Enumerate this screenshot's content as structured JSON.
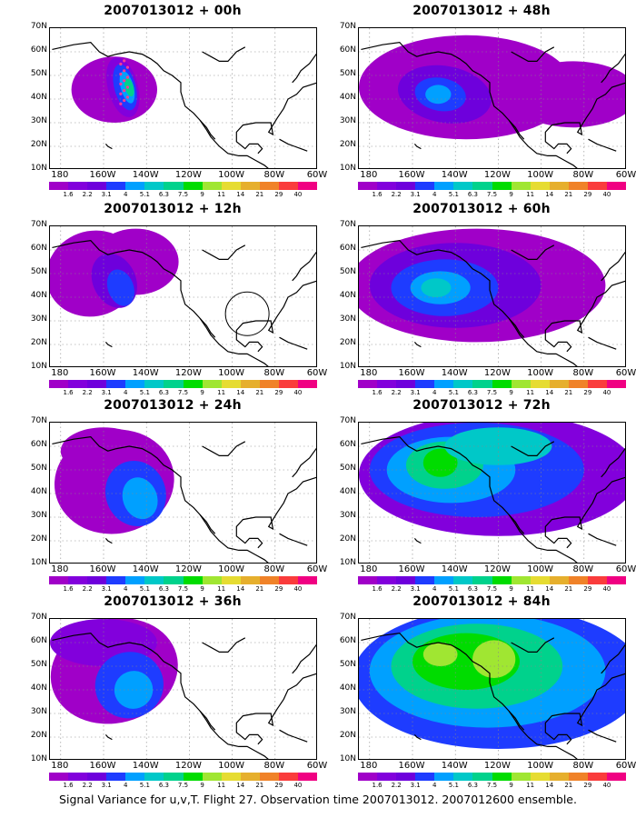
{
  "panels": [
    {
      "id": "p00",
      "title": "2007013012 + 00h"
    },
    {
      "id": "p48",
      "title": "2007013012 + 48h"
    },
    {
      "id": "p12",
      "title": "2007013012 + 12h"
    },
    {
      "id": "p60",
      "title": "2007013012 + 60h"
    },
    {
      "id": "p24",
      "title": "2007013012 + 24h"
    },
    {
      "id": "p72",
      "title": "2007013012 + 72h"
    },
    {
      "id": "p36",
      "title": "2007013012 + 36h"
    },
    {
      "id": "p84",
      "title": "2007013012 + 84h"
    }
  ],
  "lat_labels": [
    "70N",
    "60N",
    "50N",
    "40N",
    "30N",
    "20N",
    "10N"
  ],
  "lon_labels": [
    "180",
    "160W",
    "140W",
    "120W",
    "100W",
    "80W",
    "60W"
  ],
  "colorbar": {
    "labels": [
      "1.6",
      "2.2",
      "3.1",
      "4",
      "5.1",
      "6.3",
      "7.5",
      "9",
      "11",
      "14",
      "21",
      "29",
      "40"
    ],
    "colors": [
      "#a000c8",
      "#8200dc",
      "#6e00dc",
      "#1e3cff",
      "#00a0ff",
      "#00c8c8",
      "#00d28c",
      "#00dc00",
      "#a0e632",
      "#e6dc32",
      "#e6af2d",
      "#f08228",
      "#fa3c3c",
      "#f00082"
    ]
  },
  "caption": "Signal Variance for u,v,T. Flight 27. Observation time 2007013012. 2007012600 ensemble."
}
